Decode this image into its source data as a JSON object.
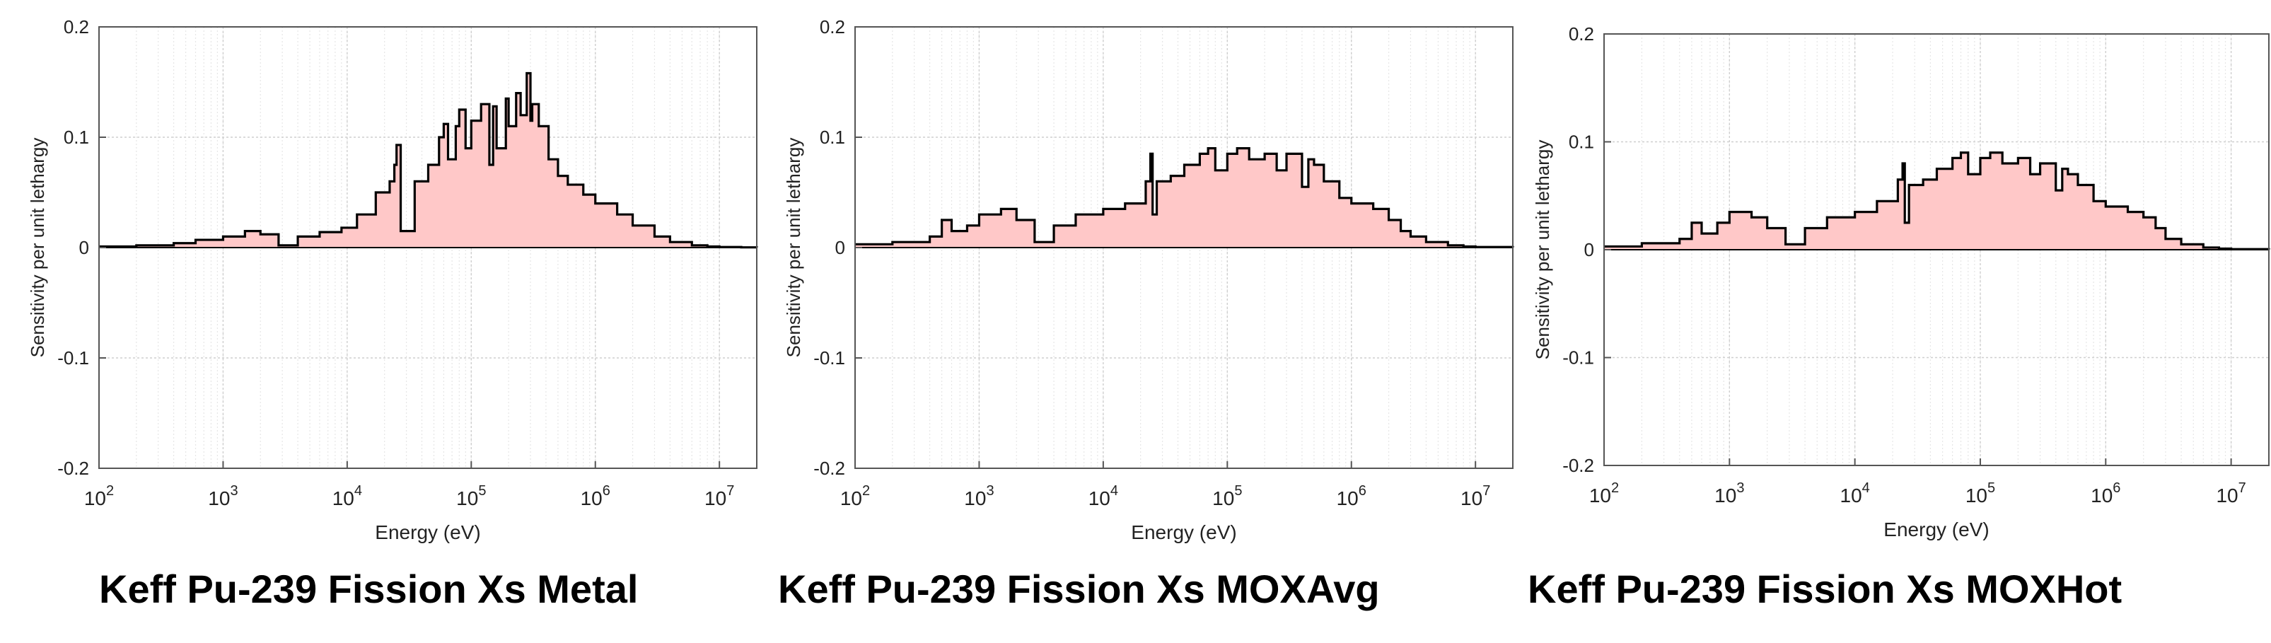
{
  "colors": {
    "fill": "#ffc8c8",
    "line": "#000000",
    "grid": "#cfcfcf",
    "axis": "#555555"
  },
  "chart_data": [
    {
      "type": "area",
      "title": "Keff  Pu-239 Fission Xs Metal",
      "xlabel": "Energy (eV)",
      "ylabel": "Sensitivity per unit lethargy",
      "xscale": "log",
      "xlim": [
        100,
        20000000
      ],
      "ylim": [
        -0.2,
        0.2
      ],
      "xticks": [
        {
          "base": "10",
          "exp": "2"
        },
        {
          "base": "10",
          "exp": "3"
        },
        {
          "base": "10",
          "exp": "4"
        },
        {
          "base": "10",
          "exp": "5"
        },
        {
          "base": "10",
          "exp": "6"
        },
        {
          "base": "10",
          "exp": "7"
        }
      ],
      "yticks": [
        "0.2",
        "0.1",
        "0",
        "-0.1",
        "-0.2"
      ],
      "grid": true,
      "series": [
        {
          "name": "Pu-239 fission",
          "x": [
            100,
            200,
            400,
            600,
            1000,
            1500,
            2000,
            2800,
            4000,
            6000,
            9000,
            12000,
            17000,
            22000,
            24000,
            25000,
            27000,
            35000,
            45000,
            55000,
            60000,
            65000,
            75000,
            80000,
            90000,
            100000,
            120000,
            140000,
            150000,
            160000,
            190000,
            200000,
            230000,
            250000,
            280000,
            300000,
            310000,
            350000,
            420000,
            500000,
            600000,
            800000,
            1000000,
            1500000,
            2000000,
            3000000,
            4000000,
            6000000,
            8000000,
            10000000,
            15000000,
            20000000
          ],
          "y": [
            0.001,
            0.002,
            0.004,
            0.007,
            0.01,
            0.015,
            0.012,
            0.002,
            0.01,
            0.014,
            0.018,
            0.03,
            0.05,
            0.06,
            0.075,
            0.093,
            0.015,
            0.06,
            0.075,
            0.1,
            0.112,
            0.08,
            0.11,
            0.125,
            0.09,
            0.115,
            0.13,
            0.075,
            0.128,
            0.09,
            0.135,
            0.11,
            0.14,
            0.12,
            0.158,
            0.115,
            0.13,
            0.11,
            0.08,
            0.065,
            0.057,
            0.048,
            0.04,
            0.03,
            0.02,
            0.01,
            0.005,
            0.002,
            0.001,
            0.0005,
            0.0002,
            0.0001
          ]
        }
      ]
    },
    {
      "type": "area",
      "title": "Keff  Pu-239 Fission Xs MOXAvg",
      "xlabel": "Energy (eV)",
      "ylabel": "Sensitivity per unit lethargy",
      "xscale": "log",
      "xlim": [
        100,
        20000000
      ],
      "ylim": [
        -0.2,
        0.2
      ],
      "xticks": [
        {
          "base": "10",
          "exp": "2"
        },
        {
          "base": "10",
          "exp": "3"
        },
        {
          "base": "10",
          "exp": "4"
        },
        {
          "base": "10",
          "exp": "5"
        },
        {
          "base": "10",
          "exp": "6"
        },
        {
          "base": "10",
          "exp": "7"
        }
      ],
      "yticks": [
        "0.2",
        "0.1",
        "0",
        "-0.1",
        "-0.2"
      ],
      "grid": true,
      "series": [
        {
          "name": "Pu-239 fission",
          "x": [
            100,
            200,
            400,
            500,
            600,
            800,
            1000,
            1500,
            2000,
            2800,
            4000,
            6000,
            10000,
            15000,
            22000,
            24000,
            25000,
            27000,
            35000,
            45000,
            60000,
            70000,
            80000,
            100000,
            120000,
            150000,
            200000,
            250000,
            300000,
            400000,
            450000,
            500000,
            600000,
            800000,
            1000000,
            1500000,
            2000000,
            2500000,
            3000000,
            4000000,
            6000000,
            8000000,
            10000000,
            20000000
          ],
          "y": [
            0.003,
            0.005,
            0.01,
            0.025,
            0.015,
            0.02,
            0.03,
            0.035,
            0.025,
            0.005,
            0.02,
            0.03,
            0.035,
            0.04,
            0.06,
            0.085,
            0.03,
            0.06,
            0.065,
            0.075,
            0.085,
            0.09,
            0.07,
            0.085,
            0.09,
            0.08,
            0.085,
            0.07,
            0.085,
            0.055,
            0.08,
            0.075,
            0.06,
            0.045,
            0.04,
            0.035,
            0.025,
            0.015,
            0.01,
            0.005,
            0.002,
            0.001,
            0.0005,
            0.0001
          ]
        }
      ]
    },
    {
      "type": "area",
      "title": "Keff  Pu-239 Fission Xs MOXHot",
      "xlabel": "Energy (eV)",
      "ylabel": "Sensitivity per unit lethargy",
      "xscale": "log",
      "xlim": [
        100,
        20000000
      ],
      "ylim": [
        -0.2,
        0.2
      ],
      "xticks": [
        {
          "base": "10",
          "exp": "2"
        },
        {
          "base": "10",
          "exp": "3"
        },
        {
          "base": "10",
          "exp": "4"
        },
        {
          "base": "10",
          "exp": "5"
        },
        {
          "base": "10",
          "exp": "6"
        },
        {
          "base": "10",
          "exp": "7"
        }
      ],
      "yticks": [
        "0.2",
        "0.1",
        "0",
        "-0.1",
        "-0.2"
      ],
      "grid": true,
      "series": [
        {
          "name": "Pu-239 fission",
          "x": [
            100,
            200,
            400,
            500,
            600,
            800,
            1000,
            1500,
            2000,
            2800,
            4000,
            6000,
            10000,
            15000,
            22000,
            24000,
            25000,
            27000,
            35000,
            45000,
            60000,
            70000,
            80000,
            100000,
            120000,
            150000,
            200000,
            250000,
            300000,
            400000,
            450000,
            500000,
            600000,
            800000,
            1000000,
            1500000,
            2000000,
            2500000,
            3000000,
            4000000,
            6000000,
            8000000,
            10000000,
            20000000
          ],
          "y": [
            0.003,
            0.006,
            0.01,
            0.025,
            0.015,
            0.025,
            0.035,
            0.03,
            0.02,
            0.005,
            0.02,
            0.03,
            0.035,
            0.045,
            0.065,
            0.08,
            0.025,
            0.06,
            0.065,
            0.075,
            0.085,
            0.09,
            0.07,
            0.085,
            0.09,
            0.08,
            0.085,
            0.07,
            0.08,
            0.055,
            0.075,
            0.07,
            0.06,
            0.045,
            0.04,
            0.035,
            0.03,
            0.02,
            0.01,
            0.005,
            0.002,
            0.001,
            0.0005,
            0.0001
          ]
        }
      ]
    }
  ]
}
